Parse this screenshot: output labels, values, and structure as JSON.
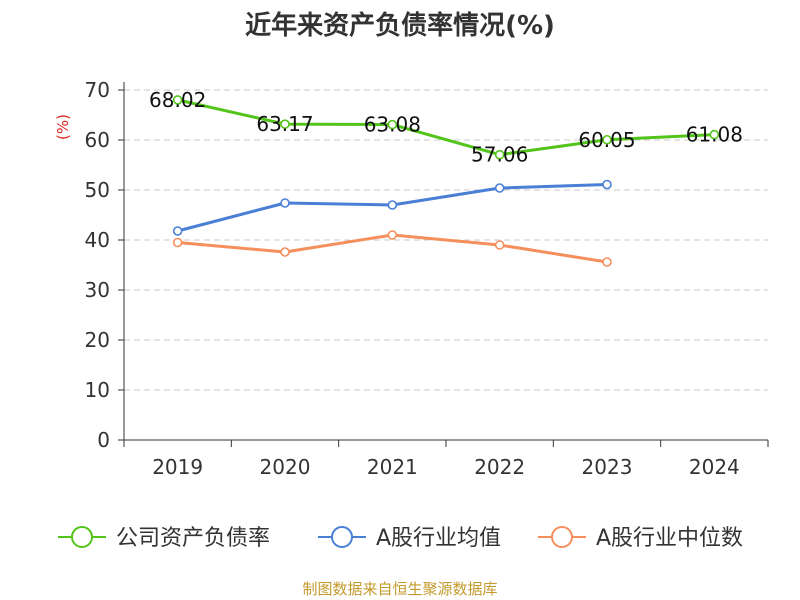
{
  "chart_data": {
    "type": "line",
    "title": "近年来资产负债率情况(%)",
    "unit_label": "(%)",
    "categories": [
      "2019",
      "2020",
      "2021",
      "2022",
      "2023",
      "2024"
    ],
    "ylim": [
      0,
      70
    ],
    "yticks": [
      "0",
      "10",
      "20",
      "30",
      "40",
      "50",
      "60",
      "70"
    ],
    "grid": true,
    "legend_position": "bottom",
    "series": [
      {
        "name": "公司资产负债率",
        "color": "#52c41a",
        "values": [
          68.02,
          63.17,
          63.08,
          57.06,
          60.05,
          61.08
        ],
        "labels": [
          "68.02",
          "63.17",
          "63.08",
          "57.06",
          "60.05",
          "61.08"
        ]
      },
      {
        "name": "A股行业均值",
        "color": "#4a7fd6",
        "values": [
          41.8,
          47.4,
          47.0,
          50.4,
          51.1,
          null
        ]
      },
      {
        "name": "A股行业中位数",
        "color": "#f58f5c",
        "values": [
          39.5,
          37.6,
          41.0,
          39.0,
          35.6,
          null
        ]
      }
    ]
  },
  "footer": {
    "source": "制图数据来自恒生聚源数据库"
  }
}
